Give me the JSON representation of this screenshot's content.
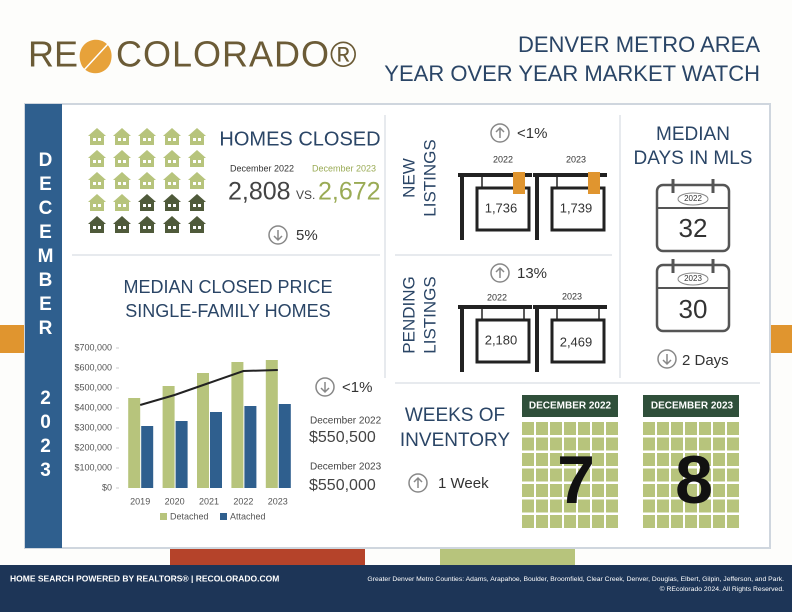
{
  "header": {
    "logo_left": "RE",
    "logo_right": "COLORADO®",
    "title_line1": "DENVER METRO AREA",
    "title_line2": "YEAR OVER YEAR MARKET WATCH"
  },
  "sidebar": {
    "month": "DECEMBER",
    "year": "2023"
  },
  "homes_closed": {
    "title": "HOMES CLOSED",
    "label_2022": "December 2022",
    "label_2023": "December 2023",
    "value_2022": "2,808",
    "vs": "VS.",
    "value_2023": "2,672",
    "change": "5%"
  },
  "median_price": {
    "title_line1": "MEDIAN CLOSED PRICE",
    "title_line2": "SINGLE-FAMILY HOMES",
    "change": "<1%",
    "label_2022": "December 2022",
    "value_2022": "$550,500",
    "label_2023": "December 2023",
    "value_2023": "$550,000"
  },
  "chart_data": {
    "type": "bar",
    "categories": [
      "2019",
      "2020",
      "2021",
      "2022",
      "2023"
    ],
    "series": [
      {
        "name": "Detached",
        "color": "#b7c47c",
        "values": [
          450000,
          510000,
          575000,
          630000,
          640000
        ]
      },
      {
        "name": "Attached",
        "color": "#2f5f8e",
        "values": [
          310000,
          335000,
          380000,
          410000,
          420000
        ]
      },
      {
        "type": "line",
        "color": "#222222",
        "values": [
          415000,
          465000,
          525000,
          585000,
          590000
        ]
      }
    ],
    "ylim": [
      0,
      700000
    ],
    "yticks": [
      {
        "value": 0,
        "label": "$0"
      },
      {
        "value": 100000,
        "label": "$100,000"
      },
      {
        "value": 200000,
        "label": "$200,000"
      },
      {
        "value": 300000,
        "label": "$300,000"
      },
      {
        "value": 400000,
        "label": "$400,000"
      },
      {
        "value": 500000,
        "label": "$500,000"
      },
      {
        "value": 600000,
        "label": "$600,000"
      },
      {
        "value": 700000,
        "label": "$700,000"
      }
    ]
  },
  "new_listings": {
    "title_line1": "NEW",
    "title_line2": "LISTINGS",
    "change": "<1%",
    "year_2022": "2022",
    "year_2023": "2023",
    "value_2022": "1,736",
    "value_2023": "1,739"
  },
  "pending_listings": {
    "title_line1": "PENDING",
    "title_line2": "LISTINGS",
    "change": "13%",
    "year_2022": "2022",
    "year_2023": "2023",
    "value_2022": "2,180",
    "value_2023": "2,469"
  },
  "days_in_mls": {
    "title_line1": "MEDIAN",
    "title_line2": "DAYS IN MLS",
    "year_2022": "2022",
    "value_2022": "32",
    "year_2023": "2023",
    "value_2023": "30",
    "change": "2 Days"
  },
  "inventory": {
    "title_line1": "WEEKS OF",
    "title_line2": "INVENTORY",
    "change": "1 Week",
    "label_2022": "DECEMBER 2022",
    "value_2022": "7",
    "label_2023": "DECEMBER 2023",
    "value_2023": "8"
  },
  "footer": {
    "left": "HOME SEARCH POWERED BY REALTORS® | RECOLORADO.COM",
    "right_line1": "Greater Denver Metro Counties: Adams, Arapahoe, Boulder, Broomfield, Clear Creek, Denver, Douglas, Elbert, Gilpin, Jefferson, and Park.",
    "right_line2": "© REcolorado 2024. All Rights Reserved."
  }
}
